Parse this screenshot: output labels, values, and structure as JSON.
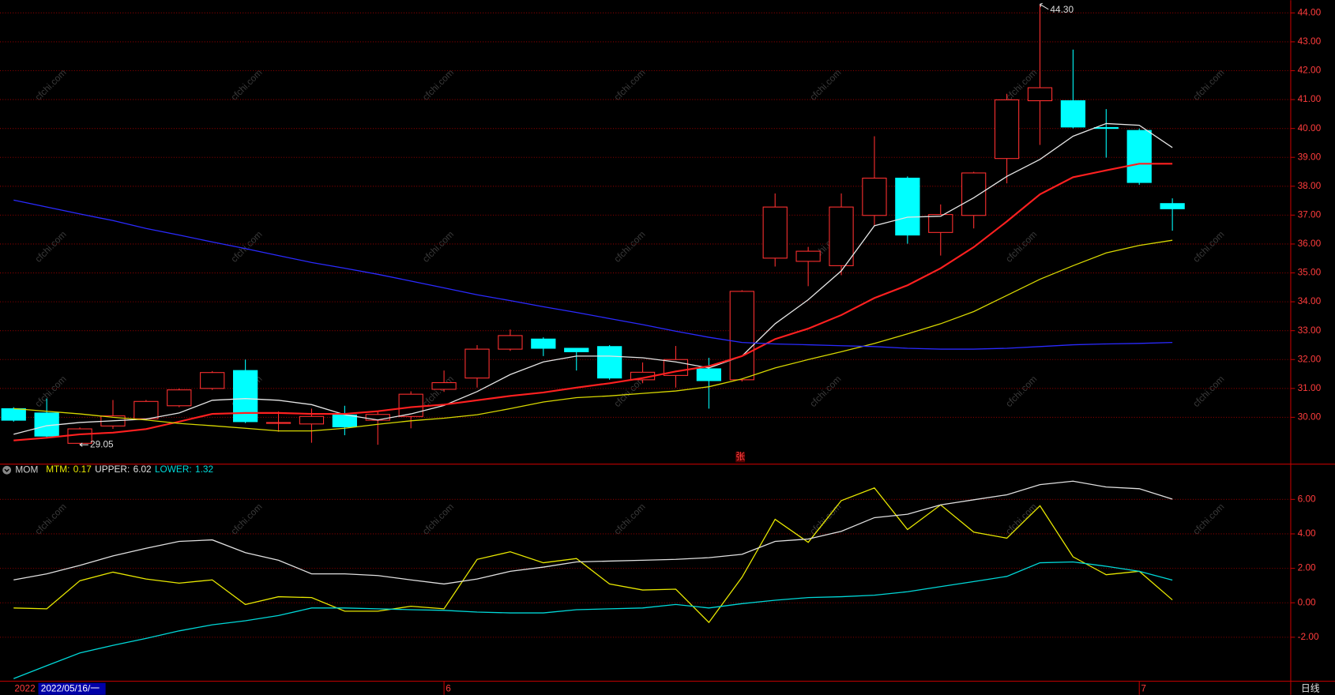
{
  "chart_data": [
    {
      "type": "candlestick",
      "categories": [
        null,
        null,
        null,
        null,
        null,
        null,
        null,
        null,
        null,
        null,
        null,
        null,
        null,
        "6",
        null,
        null,
        null,
        null,
        null,
        null,
        null,
        null,
        null,
        null,
        null,
        null,
        null,
        null,
        null,
        null,
        null,
        null,
        null,
        null,
        "7",
        null
      ],
      "open": [
        30.3,
        30.15,
        29.1,
        29.7,
        29.95,
        30.4,
        31.0,
        31.62,
        29.8,
        29.77,
        30.08,
        29.9,
        30.03,
        30.97,
        31.36,
        32.36,
        32.71,
        32.39,
        32.45,
        31.3,
        31.45,
        31.68,
        31.3,
        35.51,
        35.4,
        35.25,
        36.99,
        38.28,
        36.4,
        36.99,
        38.96,
        40.96,
        40.96,
        40.03,
        39.93,
        37.4
      ],
      "high": [
        30.35,
        30.65,
        29.65,
        30.6,
        30.6,
        31.0,
        31.6,
        32.0,
        30.2,
        30.3,
        30.4,
        30.2,
        30.9,
        31.62,
        32.5,
        33.04,
        32.77,
        32.4,
        32.5,
        31.9,
        32.47,
        32.06,
        34.4,
        37.75,
        35.9,
        37.75,
        39.73,
        38.34,
        37.37,
        38.5,
        41.2,
        44.3,
        42.73,
        40.67,
        40.0,
        37.58
      ],
      "low": [
        29.85,
        29.3,
        29.05,
        29.6,
        29.9,
        30.35,
        30.95,
        29.8,
        29.5,
        29.12,
        29.38,
        29.05,
        29.62,
        30.88,
        31.03,
        32.3,
        32.12,
        31.62,
        31.3,
        31.18,
        31.03,
        30.3,
        31.24,
        35.22,
        34.54,
        34.92,
        36.63,
        36.01,
        35.6,
        36.54,
        38.1,
        39.43,
        40.0,
        38.99,
        38.05,
        36.46
      ],
      "close": [
        29.9,
        29.35,
        29.6,
        30.05,
        30.55,
        30.95,
        31.55,
        29.85,
        29.82,
        30.03,
        29.67,
        30.1,
        30.8,
        31.2,
        32.36,
        32.83,
        32.39,
        32.27,
        31.36,
        31.56,
        32.0,
        31.27,
        34.36,
        37.28,
        35.75,
        37.28,
        38.28,
        36.31,
        37.02,
        38.46,
        40.99,
        41.41,
        40.05,
        40.0,
        38.13,
        37.22
      ],
      "up_color": "#ff3030",
      "down_color": "#00ffff",
      "series": [
        {
          "color": "#e6e6e6",
          "values": [
            29.41,
            29.71,
            29.82,
            29.88,
            29.94,
            30.15,
            30.59,
            30.65,
            30.59,
            30.44,
            30.09,
            29.91,
            30.12,
            30.41,
            30.89,
            31.48,
            31.92,
            32.12,
            32.12,
            32.06,
            31.92,
            31.71,
            32.12,
            33.24,
            34.07,
            35.07,
            36.63,
            36.93,
            36.96,
            37.6,
            38.34,
            38.93,
            39.73,
            40.17,
            40.11,
            39.34
          ]
        },
        {
          "color": "#ff2020",
          "values": [
            29.2,
            29.29,
            29.41,
            29.47,
            29.59,
            29.85,
            30.12,
            30.15,
            30.15,
            30.12,
            30.12,
            30.21,
            30.35,
            30.44,
            30.59,
            30.74,
            30.86,
            31.03,
            31.18,
            31.36,
            31.59,
            31.77,
            32.12,
            32.71,
            33.07,
            33.54,
            34.13,
            34.57,
            35.16,
            35.89,
            36.78,
            37.72,
            38.31,
            38.55,
            38.78,
            38.78
          ]
        },
        {
          "color": "#d8d800",
          "values": [
            30.3,
            30.21,
            30.12,
            30.0,
            29.91,
            29.79,
            29.71,
            29.62,
            29.53,
            29.53,
            29.62,
            29.76,
            29.88,
            29.97,
            30.09,
            30.3,
            30.53,
            30.68,
            30.74,
            30.83,
            30.91,
            31.06,
            31.33,
            31.71,
            32.0,
            32.27,
            32.56,
            32.89,
            33.24,
            33.66,
            34.22,
            34.78,
            35.25,
            35.69,
            35.95,
            36.13
          ]
        },
        {
          "color": "#2a2aff",
          "values": [
            37.52,
            37.28,
            37.04,
            36.81,
            36.54,
            36.31,
            36.07,
            35.84,
            35.6,
            35.36,
            35.16,
            34.95,
            34.72,
            34.48,
            34.24,
            34.04,
            33.83,
            33.63,
            33.42,
            33.21,
            32.98,
            32.77,
            32.59,
            32.54,
            32.51,
            32.48,
            32.45,
            32.39,
            32.36,
            32.36,
            32.39,
            32.45,
            32.51,
            32.54,
            32.56,
            32.59
          ]
        }
      ],
      "max_label": {
        "value": 44.3,
        "label": "44.30"
      },
      "min_label": {
        "value": 29.05,
        "label": "29.05"
      },
      "marker_text": "张",
      "ylim": [
        28.38,
        44.44
      ],
      "yticks": [
        {
          "value": 30,
          "label": "30.00"
        },
        {
          "value": 31,
          "label": "31.00"
        },
        {
          "value": 32,
          "label": "32.00"
        },
        {
          "value": 33,
          "label": "33.00"
        },
        {
          "value": 34,
          "label": "34.00"
        },
        {
          "value": 35,
          "label": "35.00"
        },
        {
          "value": 36,
          "label": "36.00"
        },
        {
          "value": 37,
          "label": "37.00"
        },
        {
          "value": 38,
          "label": "38.00"
        },
        {
          "value": 39,
          "label": "39.00"
        },
        {
          "value": 40,
          "label": "40.00"
        },
        {
          "value": 41,
          "label": "41.00"
        },
        {
          "value": 42,
          "label": "42.00"
        },
        {
          "value": 43,
          "label": "43.00"
        },
        {
          "value": 44,
          "label": "44.00"
        }
      ],
      "grid": true
    },
    {
      "type": "line",
      "title": "MOM",
      "series": [
        {
          "name": "MTM:",
          "current": 0.17,
          "color": "#e8e800",
          "values": [
            -0.3,
            -0.35,
            1.28,
            1.78,
            1.38,
            1.14,
            1.33,
            -0.1,
            0.35,
            0.3,
            -0.49,
            -0.49,
            -0.2,
            -0.35,
            2.52,
            2.96,
            2.32,
            2.57,
            1.09,
            0.74,
            0.79,
            -1.14,
            1.48,
            4.84,
            3.51,
            5.93,
            6.67,
            4.25,
            5.68,
            4.1,
            3.75,
            5.63,
            2.67,
            1.63,
            1.83,
            0.17
          ]
        },
        {
          "name": "UPPER:",
          "current": 6.02,
          "color": "#e0e0e0",
          "values": [
            1.33,
            1.68,
            2.17,
            2.72,
            3.16,
            3.56,
            3.65,
            2.91,
            2.47,
            1.68,
            1.68,
            1.58,
            1.33,
            1.09,
            1.38,
            1.83,
            2.07,
            2.37,
            2.42,
            2.47,
            2.52,
            2.62,
            2.81,
            3.56,
            3.7,
            4.15,
            4.94,
            5.14,
            5.68,
            5.98,
            6.27,
            6.86,
            7.06,
            6.72,
            6.62,
            6.02
          ]
        },
        {
          "name": "LOWER:",
          "current": 1.32,
          "color": "#00d8d8",
          "values": [
            -4.4,
            -3.65,
            -2.91,
            -2.47,
            -2.07,
            -1.63,
            -1.28,
            -1.04,
            -0.74,
            -0.3,
            -0.3,
            -0.35,
            -0.4,
            -0.44,
            -0.54,
            -0.59,
            -0.59,
            -0.4,
            -0.35,
            -0.3,
            -0.1,
            -0.3,
            -0.05,
            0.15,
            0.3,
            0.35,
            0.44,
            0.64,
            0.94,
            1.23,
            1.53,
            2.32,
            2.37,
            2.12,
            1.83,
            1.32
          ]
        }
      ],
      "ylim": [
        -4.55,
        7.9
      ],
      "yticks": [
        {
          "value": -2,
          "label": "-2.00"
        },
        {
          "value": 0,
          "label": "0.00"
        },
        {
          "value": 2,
          "label": "2.00"
        },
        {
          "value": 4,
          "label": "4.00"
        },
        {
          "value": 6,
          "label": "6.00"
        }
      ],
      "grid": true
    }
  ],
  "status_bar": {
    "year": "2022",
    "date": "2022/05/16/一",
    "period": "日线"
  },
  "watermark": "cfchi.com"
}
